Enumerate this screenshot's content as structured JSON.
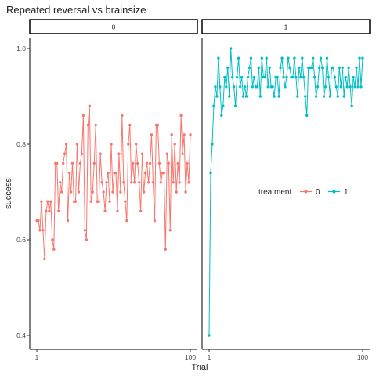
{
  "chart_data": {
    "type": "line",
    "title": "Repeated reversal vs brainsize",
    "xlabel": "Trial",
    "ylabel": "success",
    "facet_labels": [
      "0",
      "1"
    ],
    "xlim": [
      1,
      100
    ],
    "x_ticks": [
      "1",
      "100"
    ],
    "ylim": [
      0.4,
      1.0
    ],
    "y_ticks": [
      "0.4",
      "0.6",
      "0.8",
      "1.0"
    ],
    "legend": {
      "title": "treatment",
      "placement": "right-middle",
      "entries": [
        "0",
        "1"
      ]
    },
    "grid": false,
    "colors": {
      "0": "#F8766D",
      "1": "#00BFC4"
    },
    "series": [
      {
        "name": "0",
        "facet": "0",
        "values": [
          0.64,
          0.64,
          0.62,
          0.68,
          0.62,
          0.56,
          0.66,
          0.68,
          0.66,
          0.68,
          0.6,
          0.58,
          0.76,
          0.76,
          0.66,
          0.72,
          0.7,
          0.76,
          0.78,
          0.8,
          0.64,
          0.74,
          0.7,
          0.76,
          0.68,
          0.68,
          0.8,
          0.7,
          0.76,
          0.78,
          0.86,
          0.62,
          0.6,
          0.84,
          0.88,
          0.68,
          0.7,
          0.76,
          0.84,
          0.68,
          0.68,
          0.78,
          0.72,
          0.7,
          0.66,
          0.72,
          0.74,
          0.68,
          0.8,
          0.7,
          0.74,
          0.74,
          0.66,
          0.78,
          0.7,
          0.86,
          0.72,
          0.68,
          0.64,
          0.8,
          0.84,
          0.72,
          0.76,
          0.72,
          0.8,
          0.76,
          0.72,
          0.66,
          0.78,
          0.7,
          0.74,
          0.76,
          0.72,
          0.76,
          0.82,
          0.72,
          0.64,
          0.84,
          0.84,
          0.76,
          0.72,
          0.74,
          0.74,
          0.58,
          0.78,
          0.76,
          0.62,
          0.82,
          0.72,
          0.8,
          0.7,
          0.76,
          0.72,
          0.86,
          0.78,
          0.82,
          0.7,
          0.76,
          0.72,
          0.82
        ]
      },
      {
        "name": "1",
        "facet": "1",
        "values": [
          0.4,
          0.74,
          0.8,
          0.88,
          0.92,
          0.9,
          0.98,
          0.92,
          0.86,
          0.88,
          0.94,
          0.92,
          0.96,
          0.9,
          1.0,
          0.94,
          0.92,
          0.88,
          0.94,
          0.98,
          0.92,
          0.94,
          0.9,
          0.92,
          0.9,
          0.94,
          0.96,
          0.98,
          0.92,
          0.94,
          0.92,
          0.92,
          0.96,
          0.9,
          0.98,
          0.94,
          0.94,
          0.98,
          0.92,
          0.96,
          0.92,
          0.92,
          0.9,
          0.94,
          0.94,
          0.9,
          0.96,
          0.98,
          0.94,
          0.92,
          0.94,
          0.98,
          0.96,
          0.94,
          0.94,
          0.98,
          0.94,
          0.9,
          0.96,
          0.94,
          0.98,
          0.94,
          0.9,
          0.86,
          0.96,
          0.96,
          0.96,
          0.98,
          0.94,
          0.9,
          0.92,
          0.96,
          0.98,
          0.96,
          0.9,
          0.92,
          0.98,
          0.94,
          0.9,
          0.96,
          0.96,
          0.94,
          0.92,
          0.9,
          0.96,
          0.92,
          0.96,
          0.9,
          0.94,
          0.92,
          0.96,
          0.92,
          0.88,
          0.94,
          0.92,
          0.96,
          0.92,
          0.98,
          0.92,
          0.98
        ]
      }
    ]
  }
}
